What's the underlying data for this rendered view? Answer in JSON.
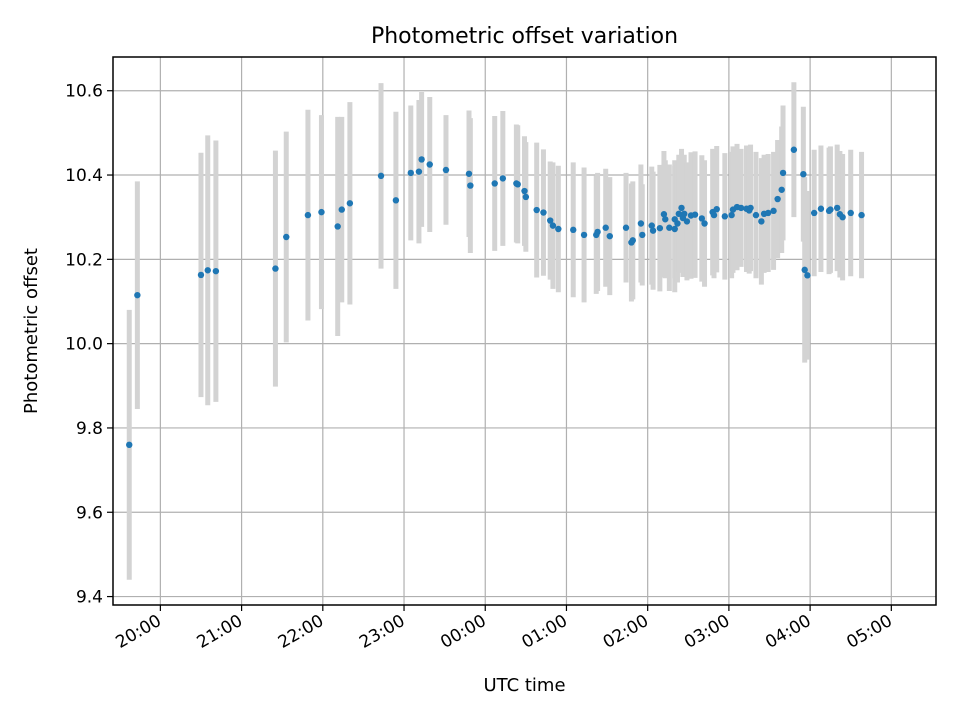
{
  "chart_data": {
    "type": "scatter",
    "title": "Photometric offset variation",
    "xlabel": "UTC time",
    "ylabel": "Photometric offset",
    "x_unit": "hours",
    "x_ticks": [
      "20:00",
      "21:00",
      "22:00",
      "23:00",
      "00:00",
      "01:00",
      "02:00",
      "03:00",
      "04:00",
      "05:00"
    ],
    "y_ticks": [
      "9.4",
      "9.6",
      "9.8",
      "10.0",
      "10.2",
      "10.4",
      "10.6"
    ],
    "xlim": [
      "19:25",
      "05:33"
    ],
    "ylim": [
      9.38,
      10.68
    ],
    "grid": true,
    "colors": {
      "marker": "#1f77b4",
      "errorbar": "#d3d3d3"
    },
    "series": [
      {
        "x": [
          "19:37",
          "19:43",
          "20:30",
          "20:35",
          "20:41",
          "21:25",
          "21:33",
          "21:49",
          "21:59",
          "22:11",
          "22:14",
          "22:20",
          "22:43",
          "22:54",
          "23:05",
          "23:11",
          "23:13",
          "23:19",
          "23:31",
          "23:48",
          "23:49",
          "00:07",
          "00:13",
          "00:23",
          "00:24",
          "00:29",
          "00:30",
          "00:38",
          "00:43",
          "00:48",
          "00:50",
          "00:54",
          "01:05",
          "01:13",
          "01:22",
          "01:23",
          "01:29",
          "01:32",
          "01:44",
          "01:48",
          "01:49",
          "01:55",
          "01:56",
          "02:03",
          "02:04",
          "02:09",
          "02:12",
          "02:13",
          "02:16",
          "02:20",
          "02:20",
          "02:22",
          "02:23",
          "02:25",
          "02:26",
          "02:27",
          "02:29",
          "02:32",
          "02:35",
          "02:40",
          "02:42",
          "02:48",
          "02:49",
          "02:51",
          "02:57",
          "03:02",
          "03:03",
          "03:06",
          "03:09",
          "03:13",
          "03:15",
          "03:16",
          "03:20",
          "03:24",
          "03:26",
          "03:29",
          "03:33",
          "03:36",
          "03:39",
          "03:40",
          "03:48",
          "03:55",
          "03:56",
          "03:58",
          "04:03",
          "04:08",
          "04:14",
          "04:15",
          "04:20",
          "04:22",
          "04:24",
          "04:30",
          "04:38"
        ],
        "y": [
          9.76,
          10.115,
          10.163,
          10.174,
          10.172,
          10.178,
          10.253,
          10.305,
          10.312,
          10.278,
          10.318,
          10.333,
          10.398,
          10.34,
          10.405,
          10.408,
          10.437,
          10.425,
          10.412,
          10.403,
          10.375,
          10.38,
          10.392,
          10.38,
          10.378,
          10.362,
          10.348,
          10.317,
          10.311,
          10.292,
          10.28,
          10.272,
          10.27,
          10.258,
          10.258,
          10.265,
          10.275,
          10.255,
          10.275,
          10.24,
          10.245,
          10.285,
          10.258,
          10.28,
          10.268,
          10.274,
          10.307,
          10.295,
          10.275,
          10.272,
          10.295,
          10.285,
          10.308,
          10.322,
          10.298,
          10.308,
          10.29,
          10.304,
          10.306,
          10.297,
          10.285,
          10.312,
          10.305,
          10.319,
          10.302,
          10.305,
          10.318,
          10.324,
          10.322,
          10.32,
          10.316,
          10.322,
          10.305,
          10.29,
          10.308,
          10.31,
          10.315,
          10.343,
          10.365,
          10.405,
          10.46,
          10.402,
          10.175,
          10.162,
          10.31,
          10.32,
          10.315,
          10.318,
          10.322,
          10.307,
          10.3,
          10.31,
          10.305
        ],
        "yerr": [
          0.32,
          0.27,
          0.29,
          0.32,
          0.31,
          0.28,
          0.25,
          0.25,
          0.23,
          0.26,
          0.22,
          0.24,
          0.22,
          0.21,
          0.16,
          0.17,
          0.16,
          0.16,
          0.13,
          0.15,
          0.16,
          0.16,
          0.16,
          0.14,
          0.14,
          0.13,
          0.13,
          0.16,
          0.15,
          0.14,
          0.15,
          0.15,
          0.16,
          0.16,
          0.14,
          0.14,
          0.14,
          0.14,
          0.13,
          0.14,
          0.14,
          0.14,
          0.12,
          0.14,
          0.14,
          0.15,
          0.15,
          0.14,
          0.15,
          0.15,
          0.14,
          0.14,
          0.14,
          0.14,
          0.14,
          0.14,
          0.14,
          0.15,
          0.15,
          0.15,
          0.15,
          0.15,
          0.15,
          0.15,
          0.15,
          0.15,
          0.15,
          0.15,
          0.14,
          0.15,
          0.15,
          0.15,
          0.15,
          0.15,
          0.14,
          0.14,
          0.14,
          0.14,
          0.15,
          0.16,
          0.16,
          0.16,
          0.22,
          0.2,
          0.15,
          0.15,
          0.15,
          0.15,
          0.15,
          0.15,
          0.15,
          0.15,
          0.15
        ]
      }
    ]
  }
}
